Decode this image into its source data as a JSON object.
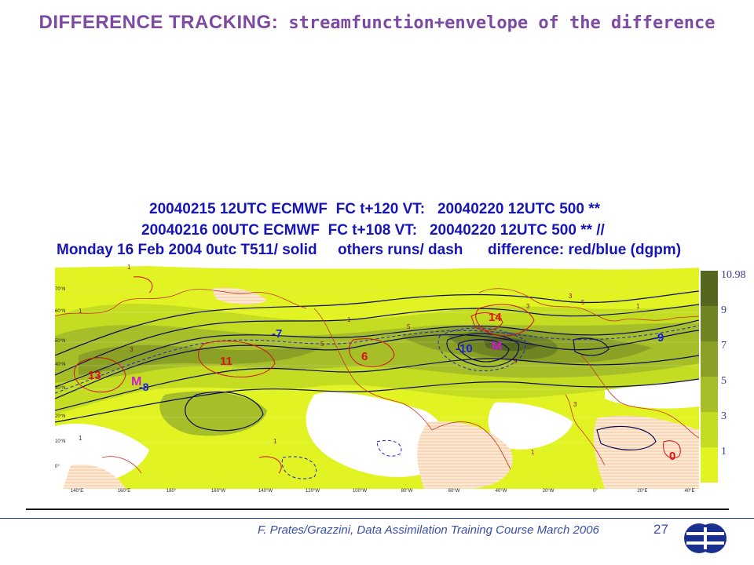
{
  "slide": {
    "title_main": "DIFFERENCE TRACKING",
    "title_sep": ":",
    "title_rest": " streamfunction+envelope of the difference",
    "footer": "F. Prates/Grazzini,  Data Assimilation Training Course March 2006",
    "page": "27"
  },
  "figure": {
    "header_lines": [
      "20040215 12UTC ECMWF  FC t+120 VT:   20040220 12UTC 500 **",
      "20040216 00UTC ECMWF  FC t+108 VT:   20040220 12UTC 500 ** //",
      "Monday 16 Feb 2004 0utc T511/ solid     others runs/ dash      difference: red/blue (dgpm)"
    ],
    "lat_labels": [
      "70°N",
      "60°N",
      "50°N",
      "40°N",
      "30°N",
      "20°N",
      "10°N",
      "0°"
    ],
    "lon_labels": [
      "140°E",
      "160°E",
      "180°",
      "160°W",
      "140°W",
      "120°W",
      "100°W",
      "80°W",
      "60°W",
      "40°W",
      "20°W",
      "0°",
      "20°E",
      "40°E"
    ],
    "colorbar_labels": [
      "10.98",
      "9",
      "7",
      "5",
      "3",
      "1"
    ],
    "colorbar_colors": [
      "#55671e",
      "#6f8423",
      "#8aa126",
      "#a6be28",
      "#c4dd22",
      "#e1f322"
    ],
    "markers": [
      {
        "text": "13",
        "color": "#e01010"
      },
      {
        "text": "M",
        "color": "#d01ad0"
      },
      {
        "text": "-8",
        "color": "#1a22d8"
      },
      {
        "text": "11",
        "color": "#e01010"
      },
      {
        "text": "-7",
        "color": "#1a22d8"
      },
      {
        "text": "6",
        "color": "#e01010"
      },
      {
        "text": "-10",
        "color": "#1a22d8"
      },
      {
        "text": "M",
        "color": "#d01ad0"
      },
      {
        "text": "14",
        "color": "#e01010"
      },
      {
        "text": "-9",
        "color": "#1a22d8"
      },
      {
        "text": "0",
        "color": "#e01010"
      }
    ]
  }
}
